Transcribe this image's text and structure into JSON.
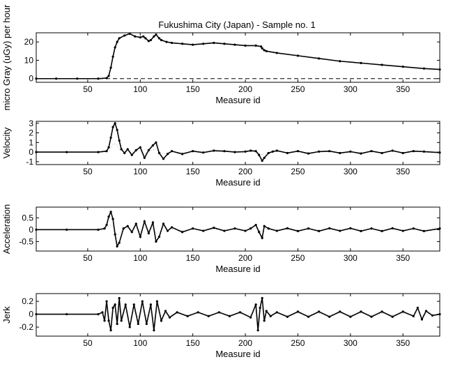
{
  "figure": {
    "title": "Fukushima City (Japan) - Sample no. 1"
  },
  "chart_data": [
    {
      "type": "line",
      "title": "Fukushima City (Japan) - Sample no. 1",
      "xlabel": "Measure id",
      "ylabel": "micro Gray (uGy) per hour",
      "xlim": [
        1,
        385
      ],
      "ylim": [
        -2,
        25
      ],
      "xticks": [
        50,
        100,
        150,
        200,
        250,
        300,
        350
      ],
      "yticks": [
        0,
        10,
        20
      ],
      "reference_line": {
        "y": 0,
        "style": "dashed"
      },
      "series": [
        {
          "x": [
            1,
            20,
            40,
            60,
            68,
            70,
            72,
            74,
            76,
            78,
            80,
            85,
            90,
            95,
            100,
            103,
            105,
            108,
            110,
            113,
            115,
            118,
            120,
            125,
            130,
            140,
            150,
            160,
            170,
            180,
            190,
            200,
            210,
            215,
            216,
            218,
            220,
            230,
            250,
            270,
            290,
            310,
            330,
            350,
            370,
            385
          ],
          "y": [
            0,
            0,
            0,
            0,
            0.3,
            1.5,
            6,
            12,
            17,
            20,
            22,
            23.5,
            24.5,
            23,
            22.5,
            23,
            22,
            20.5,
            21,
            23,
            24,
            22,
            21,
            20,
            19.5,
            19,
            18.5,
            19,
            19.5,
            19,
            18.5,
            18,
            18,
            17.5,
            16.5,
            15.5,
            15,
            14,
            12.5,
            11,
            9.5,
            8.5,
            7.5,
            6.5,
            5.5,
            5
          ]
        }
      ]
    },
    {
      "type": "line",
      "xlabel": "Measure id",
      "ylabel": "Velocity",
      "xlim": [
        1,
        385
      ],
      "ylim": [
        -1.3,
        3.2
      ],
      "xticks": [
        50,
        100,
        150,
        200,
        250,
        300,
        350
      ],
      "yticks": [
        -1,
        0,
        1,
        2,
        3
      ],
      "series": [
        {
          "x": [
            1,
            30,
            60,
            68,
            70,
            72,
            74,
            76,
            78,
            80,
            82,
            85,
            88,
            92,
            96,
            100,
            104,
            108,
            112,
            115,
            118,
            122,
            126,
            130,
            140,
            150,
            160,
            170,
            180,
            190,
            200,
            205,
            210,
            213,
            216,
            218,
            222,
            226,
            230,
            240,
            250,
            260,
            270,
            280,
            290,
            300,
            310,
            320,
            330,
            340,
            350,
            360,
            370,
            385
          ],
          "y": [
            0,
            0,
            0,
            0.1,
            0.5,
            1.5,
            2.6,
            3.0,
            2.3,
            1.2,
            0.3,
            -0.1,
            0.3,
            -0.3,
            0.2,
            0.5,
            -0.6,
            0.2,
            0.7,
            1.0,
            -0.1,
            -0.7,
            -0.2,
            0.1,
            -0.2,
            0.1,
            -0.05,
            0.15,
            0.1,
            0,
            0.05,
            0.15,
            0.1,
            -0.3,
            -0.9,
            -0.6,
            -0.1,
            0.05,
            0.15,
            -0.1,
            0.1,
            -0.15,
            0.05,
            0.1,
            -0.1,
            0.05,
            -0.15,
            0.1,
            -0.1,
            0.15,
            -0.1,
            0.1,
            0.05,
            -0.05
          ]
        }
      ]
    },
    {
      "type": "line",
      "xlabel": "Measure id",
      "ylabel": "Acceleration",
      "xlim": [
        1,
        385
      ],
      "ylim": [
        -0.9,
        0.95
      ],
      "xticks": [
        50,
        100,
        150,
        200,
        250,
        300,
        350
      ],
      "yticks": [
        -0.5,
        0,
        0.5
      ],
      "series": [
        {
          "x": [
            1,
            30,
            60,
            66,
            68,
            70,
            72,
            74,
            76,
            78,
            80,
            84,
            88,
            92,
            96,
            100,
            104,
            108,
            112,
            115,
            118,
            122,
            126,
            130,
            140,
            150,
            160,
            170,
            180,
            190,
            200,
            205,
            210,
            213,
            216,
            218,
            222,
            230,
            240,
            250,
            260,
            270,
            280,
            290,
            300,
            310,
            320,
            330,
            340,
            350,
            360,
            370,
            385
          ],
          "y": [
            0,
            0,
            0,
            0.05,
            0.2,
            0.55,
            0.75,
            0.45,
            -0.2,
            -0.7,
            -0.55,
            0.05,
            0.15,
            -0.1,
            0.25,
            -0.3,
            0.35,
            -0.15,
            0.3,
            -0.5,
            -0.3,
            0.25,
            -0.05,
            0.1,
            -0.1,
            0.05,
            -0.05,
            0.08,
            -0.05,
            0.05,
            -0.05,
            0.05,
            0.2,
            -0.1,
            -0.35,
            0.15,
            0.05,
            -0.05,
            0.06,
            -0.06,
            0.05,
            -0.06,
            0.06,
            -0.05,
            0.06,
            -0.06,
            0.05,
            -0.06,
            0.06,
            -0.05,
            0.05,
            -0.06,
            0.05
          ]
        }
      ]
    },
    {
      "type": "line",
      "xlabel": "Measure id",
      "ylabel": "Jerk",
      "xlim": [
        1,
        385
      ],
      "ylim": [
        -0.34,
        0.32
      ],
      "xticks": [
        50,
        100,
        150,
        200,
        250,
        300,
        350
      ],
      "yticks": [
        -0.2,
        0,
        0.2
      ],
      "series": [
        {
          "x": [
            1,
            30,
            60,
            64,
            66,
            68,
            70,
            72,
            74,
            76,
            78,
            80,
            82,
            86,
            90,
            94,
            98,
            102,
            106,
            110,
            113,
            116,
            120,
            124,
            128,
            135,
            145,
            155,
            165,
            175,
            185,
            195,
            205,
            210,
            212,
            214,
            216,
            218,
            220,
            224,
            230,
            240,
            250,
            260,
            270,
            280,
            290,
            300,
            310,
            320,
            330,
            340,
            350,
            360,
            364,
            368,
            372,
            378,
            385
          ],
          "y": [
            0,
            0,
            0,
            0.03,
            -0.1,
            0.2,
            -0.1,
            -0.25,
            0.1,
            0.15,
            -0.15,
            0.25,
            -0.1,
            0.15,
            -0.2,
            0.15,
            -0.15,
            0.2,
            -0.15,
            0.15,
            -0.25,
            0.2,
            -0.1,
            0.05,
            -0.05,
            0.03,
            -0.03,
            0.03,
            -0.03,
            0.03,
            -0.03,
            0.03,
            -0.05,
            0.15,
            -0.25,
            0.1,
            0.25,
            -0.1,
            0.05,
            -0.03,
            0.03,
            -0.04,
            0.04,
            -0.04,
            0.04,
            -0.04,
            0.04,
            -0.04,
            0.04,
            -0.04,
            0.04,
            -0.04,
            0.04,
            -0.03,
            0.1,
            -0.08,
            0.05,
            -0.02,
            0
          ]
        }
      ]
    }
  ]
}
